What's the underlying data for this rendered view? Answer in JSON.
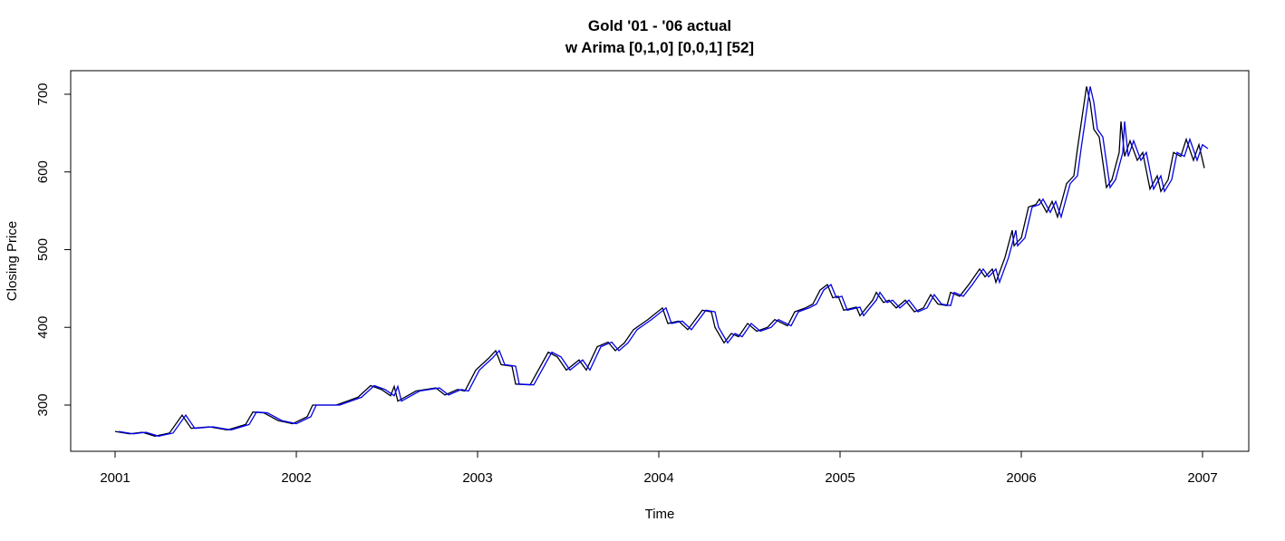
{
  "chart_data": {
    "type": "line",
    "title": "Gold '01 - '06 actual",
    "subtitle": "w Arima [0,1,0] [0,0,1] [52]",
    "x_label": "Time",
    "y_label": "Closing Price",
    "xlim": [
      2000.755,
      2007.255
    ],
    "ylim": [
      240.5,
      730.3
    ],
    "xticks": [
      2001,
      2002,
      2003,
      2004,
      2005,
      2006,
      2007
    ],
    "yticks": [
      300,
      400,
      500,
      600,
      700
    ],
    "series": [
      {
        "color": "#000000",
        "x": [
          2001.0,
          2001.08,
          2001.15,
          2001.22,
          2001.3,
          2001.37,
          2001.42,
          2001.52,
          2001.62,
          2001.72,
          2001.76,
          2001.82,
          2001.9,
          2001.98,
          2002.06,
          2002.09,
          2002.22,
          2002.34,
          2002.41,
          2002.47,
          2002.52,
          2002.54,
          2002.56,
          2002.66,
          2002.77,
          2002.82,
          2002.89,
          2002.93,
          2002.99,
          2003.06,
          2003.1,
          2003.13,
          2003.19,
          2003.21,
          2003.29,
          2003.39,
          2003.44,
          2003.49,
          2003.56,
          2003.6,
          2003.66,
          2003.72,
          2003.76,
          2003.81,
          2003.86,
          2003.94,
          2004.02,
          2004.05,
          2004.11,
          2004.16,
          2004.24,
          2004.29,
          2004.31,
          2004.36,
          2004.4,
          2004.44,
          2004.49,
          2004.54,
          2004.6,
          2004.64,
          2004.71,
          2004.75,
          2004.81,
          2004.85,
          2004.89,
          2004.93,
          2004.96,
          2004.99,
          2005.02,
          2005.09,
          2005.11,
          2005.18,
          2005.2,
          2005.24,
          2005.27,
          2005.31,
          2005.36,
          2005.41,
          2005.46,
          2005.5,
          2005.54,
          2005.59,
          2005.61,
          2005.66,
          2005.71,
          2005.77,
          2005.8,
          2005.84,
          2005.86,
          2005.91,
          2005.95,
          2005.96,
          2006.0,
          2006.04,
          2006.08,
          2006.1,
          2006.14,
          2006.17,
          2006.2,
          2006.25,
          2006.29,
          2006.31,
          2006.36,
          2006.38,
          2006.4,
          2006.43,
          2006.47,
          2006.5,
          2006.54,
          2006.55,
          2006.57,
          2006.6,
          2006.64,
          2006.67,
          2006.71,
          2006.75,
          2006.77,
          2006.81,
          2006.84,
          2006.88,
          2006.91,
          2006.95,
          2006.98,
          2007.01
        ],
        "values": [
          266,
          263,
          265,
          260,
          264,
          287,
          270,
          272,
          268,
          275,
          291,
          290,
          280,
          276,
          285,
          300,
          300,
          310,
          325,
          320,
          312,
          324,
          305,
          318,
          322,
          313,
          320,
          318,
          345,
          360,
          370,
          352,
          350,
          327,
          326,
          368,
          362,
          345,
          358,
          345,
          375,
          381,
          370,
          380,
          397,
          410,
          425,
          405,
          408,
          397,
          422,
          420,
          400,
          380,
          392,
          388,
          405,
          395,
          400,
          410,
          402,
          420,
          425,
          430,
          448,
          455,
          438,
          440,
          422,
          426,
          415,
          435,
          445,
          432,
          435,
          425,
          435,
          420,
          425,
          442,
          430,
          428,
          445,
          440,
          455,
          475,
          465,
          475,
          458,
          490,
          525,
          505,
          515,
          555,
          558,
          565,
          548,
          562,
          542,
          585,
          595,
          630,
          710,
          690,
          655,
          645,
          580,
          590,
          625,
          665,
          620,
          640,
          615,
          625,
          578,
          595,
          575,
          590,
          625,
          620,
          642,
          615,
          635,
          605
        ]
      },
      {
        "color": "#0000ff",
        "x": [
          2001.02,
          2001.1,
          2001.17,
          2001.24,
          2001.32,
          2001.39,
          2001.44,
          2001.54,
          2001.64,
          2001.74,
          2001.78,
          2001.84,
          2001.92,
          2002.0,
          2002.08,
          2002.11,
          2002.24,
          2002.36,
          2002.43,
          2002.49,
          2002.54,
          2002.56,
          2002.58,
          2002.68,
          2002.79,
          2002.84,
          2002.91,
          2002.95,
          2003.01,
          2003.08,
          2003.12,
          2003.15,
          2003.21,
          2003.23,
          2003.31,
          2003.41,
          2003.46,
          2003.51,
          2003.58,
          2003.62,
          2003.68,
          2003.74,
          2003.78,
          2003.83,
          2003.88,
          2003.96,
          2004.04,
          2004.07,
          2004.13,
          2004.18,
          2004.26,
          2004.31,
          2004.33,
          2004.38,
          2004.42,
          2004.46,
          2004.51,
          2004.56,
          2004.62,
          2004.66,
          2004.73,
          2004.77,
          2004.83,
          2004.87,
          2004.91,
          2004.95,
          2004.98,
          2005.01,
          2005.04,
          2005.11,
          2005.13,
          2005.2,
          2005.22,
          2005.26,
          2005.29,
          2005.33,
          2005.38,
          2005.43,
          2005.48,
          2005.52,
          2005.56,
          2005.61,
          2005.63,
          2005.68,
          2005.73,
          2005.79,
          2005.82,
          2005.86,
          2005.88,
          2005.93,
          2005.97,
          2005.98,
          2006.02,
          2006.06,
          2006.1,
          2006.12,
          2006.16,
          2006.19,
          2006.22,
          2006.27,
          2006.31,
          2006.33,
          2006.38,
          2006.4,
          2006.42,
          2006.45,
          2006.49,
          2006.52,
          2006.56,
          2006.57,
          2006.59,
          2006.62,
          2006.66,
          2006.69,
          2006.73,
          2006.77,
          2006.79,
          2006.83,
          2006.86,
          2006.9,
          2006.93,
          2006.97,
          2007.0,
          2007.03
        ],
        "values": [
          266,
          263,
          265,
          260,
          264,
          287,
          270,
          272,
          268,
          275,
          291,
          290,
          280,
          276,
          285,
          300,
          300,
          310,
          325,
          320,
          312,
          324,
          305,
          318,
          322,
          313,
          320,
          318,
          345,
          360,
          370,
          352,
          350,
          327,
          326,
          368,
          362,
          345,
          358,
          345,
          375,
          381,
          370,
          380,
          397,
          410,
          425,
          405,
          408,
          397,
          422,
          420,
          400,
          380,
          392,
          388,
          405,
          395,
          400,
          410,
          402,
          420,
          425,
          430,
          448,
          455,
          438,
          440,
          422,
          426,
          415,
          435,
          445,
          432,
          435,
          425,
          435,
          420,
          425,
          442,
          430,
          428,
          445,
          440,
          455,
          475,
          465,
          475,
          458,
          490,
          525,
          505,
          515,
          555,
          558,
          565,
          548,
          562,
          542,
          585,
          595,
          630,
          710,
          690,
          655,
          645,
          580,
          590,
          625,
          665,
          620,
          640,
          615,
          625,
          578,
          595,
          575,
          590,
          625,
          620,
          642,
          615,
          635,
          630
        ]
      }
    ]
  }
}
